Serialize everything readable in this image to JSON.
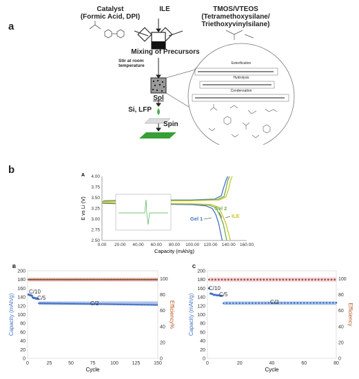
{
  "panel_a": {
    "label": "a",
    "catalyst_line1": "Catalyst",
    "catalyst_line2": "(Formic Acid, DPI)",
    "ile": "ILE",
    "tmos_line1": "TMOS/VTEOS",
    "tmos_line2": "(Tetramethoxysilane/",
    "tmos_line3": "Triethoxyvinylsilane)",
    "mixing": "Mixing of Precursors",
    "stir_line1": "Stir at room",
    "stir_line2": "temperature",
    "sol": "Sol",
    "si_lfp": "Si, LFP",
    "spin": "Spin",
    "esterification": "Esterification",
    "hydrolysis": "Hydrolysis",
    "condensation": "Condensation"
  },
  "panel_b": {
    "label": "b"
  },
  "charts": {
    "A": {
      "letter": "A",
      "xlabel": "Capacity (mAh/g)",
      "ylabel": "E vs Li (V)",
      "xticks": [
        "0.00",
        "20.00",
        "40.00",
        "60.00",
        "80.00",
        "100.00",
        "120.00",
        "140.00",
        "160.00"
      ],
      "yticks": [
        "2.50",
        "2.75",
        "3.00",
        "3.25",
        "3.50",
        "3.75",
        "4.00"
      ],
      "labels": {
        "gel2": "Gel 2",
        "gel1": "Gel 1",
        "ile": "ILE"
      }
    },
    "B": {
      "letter": "B",
      "xlabel": "Cycle",
      "ylabel_left": "Capacity (mAh/g)",
      "ylabel_right": "Efficiency%",
      "xticks": [
        "0",
        "25",
        "50",
        "75",
        "100",
        "125",
        "150"
      ],
      "yticks_left": [
        "0",
        "20",
        "40",
        "60",
        "80",
        "100",
        "120",
        "140",
        "160",
        "180",
        "200"
      ],
      "yticks_right": [
        "0",
        "20",
        "40",
        "60",
        "80",
        "100"
      ],
      "rates": {
        "c10": "C/10",
        "c5": "C/5",
        "c2": "C/2"
      }
    },
    "C": {
      "letter": "C",
      "xlabel": "Cycle",
      "ylabel_left": "Capacity (mAh/g)",
      "ylabel_right": "Efficiency",
      "xticks": [
        "0",
        "20",
        "40",
        "60",
        "80"
      ],
      "yticks_left": [
        "0",
        "20",
        "40",
        "60",
        "80",
        "100",
        "120",
        "140",
        "160",
        "180",
        "200"
      ],
      "yticks_right": [
        "0",
        "20",
        "40",
        "60",
        "80",
        "100"
      ],
      "rates": {
        "c10": "C/10",
        "c5": "C/5",
        "c2": "C/2"
      }
    }
  },
  "chart_data": [
    {
      "type": "line",
      "id": "A",
      "xlim": [
        0,
        160
      ],
      "ylim": [
        2.5,
        4.0
      ],
      "series": [
        {
          "name": "Gel 1",
          "color": "#4472c4",
          "discharge": [
            [
              0,
              3.38
            ],
            [
              2,
              3.37
            ],
            [
              20,
              3.36
            ],
            [
              60,
              3.35
            ],
            [
              100,
              3.34
            ],
            [
              115,
              3.31
            ],
            [
              122,
              3.25
            ],
            [
              126,
              3.1
            ],
            [
              129,
              2.9
            ],
            [
              133,
              2.5
            ]
          ],
          "charge": [
            [
              0,
              3.38
            ],
            [
              2,
              3.43
            ],
            [
              20,
              3.44
            ],
            [
              60,
              3.445
            ],
            [
              100,
              3.45
            ],
            [
              125,
              3.47
            ],
            [
              132,
              3.55
            ],
            [
              134,
              3.7
            ],
            [
              137,
              3.9
            ],
            [
              139,
              4.0
            ]
          ]
        },
        {
          "name": "Gel 2",
          "color": "#70ad47",
          "discharge": [
            [
              0,
              3.39
            ],
            [
              2,
              3.38
            ],
            [
              20,
              3.37
            ],
            [
              60,
              3.36
            ],
            [
              100,
              3.355
            ],
            [
              118,
              3.33
            ],
            [
              126,
              3.27
            ],
            [
              130,
              3.1
            ],
            [
              134,
              2.9
            ],
            [
              138,
              2.5
            ]
          ],
          "charge": [
            [
              0,
              3.38
            ],
            [
              2,
              3.42
            ],
            [
              20,
              3.43
            ],
            [
              60,
              3.435
            ],
            [
              100,
              3.44
            ],
            [
              128,
              3.46
            ],
            [
              135,
              3.53
            ],
            [
              137,
              3.7
            ],
            [
              139,
              3.9
            ],
            [
              141,
              4.0
            ]
          ]
        },
        {
          "name": "ILE",
          "color": "#c9c42a",
          "discharge": [
            [
              0,
              3.4
            ],
            [
              2,
              3.39
            ],
            [
              20,
              3.38
            ],
            [
              60,
              3.37
            ],
            [
              100,
              3.36
            ],
            [
              121,
              3.34
            ],
            [
              129,
              3.28
            ],
            [
              133,
              3.1
            ],
            [
              137,
              2.9
            ],
            [
              142,
              2.5
            ]
          ],
          "charge": [
            [
              0,
              3.38
            ],
            [
              2,
              3.41
            ],
            [
              20,
              3.42
            ],
            [
              60,
              3.425
            ],
            [
              100,
              3.43
            ],
            [
              130,
              3.45
            ],
            [
              137,
              3.52
            ],
            [
              140,
              3.7
            ],
            [
              142,
              3.9
            ],
            [
              144,
              4.0
            ]
          ]
        }
      ]
    },
    {
      "type": "scatter",
      "id": "B",
      "xlim": [
        0,
        150
      ],
      "ylim_left": [
        0,
        200
      ],
      "ylim_right": [
        0,
        110
      ],
      "capacity": {
        "segments": [
          {
            "rate": "C/10",
            "x": [
              1,
              2,
              3,
              4,
              5
            ],
            "y": [
              146,
              145,
              144,
              144,
              143
            ]
          },
          {
            "rate": "C/5",
            "x": [
              6,
              7,
              8,
              9,
              10,
              11,
              12
            ],
            "y": [
              139,
              138,
              138,
              137,
              137,
              136,
              136
            ]
          },
          {
            "rate": "C/2",
            "x_start": 13,
            "x_end": 150,
            "y_start": 126,
            "y_end": 122
          }
        ]
      },
      "efficiency": {
        "x_start": 1,
        "x_end": 150,
        "y": 99
      }
    },
    {
      "type": "scatter",
      "id": "C",
      "xlim": [
        0,
        80
      ],
      "ylim_left": [
        0,
        200
      ],
      "ylim_right": [
        0,
        110
      ],
      "capacity": {
        "segments": [
          {
            "rate": "C/10",
            "x": [
              1,
              2,
              3
            ],
            "y": [
              160,
              148,
              147
            ]
          },
          {
            "rate": "C/5",
            "x": [
              4,
              5,
              6,
              7,
              8,
              9
            ],
            "y": [
              145,
              145,
              144,
              144,
              143,
              143
            ]
          },
          {
            "rate": "C/2",
            "x_start": 10,
            "x_end": 80,
            "y_start": 126,
            "y_end": 127
          }
        ]
      },
      "efficiency": {
        "x_start": 1,
        "x_end": 80,
        "y": 99
      }
    }
  ]
}
